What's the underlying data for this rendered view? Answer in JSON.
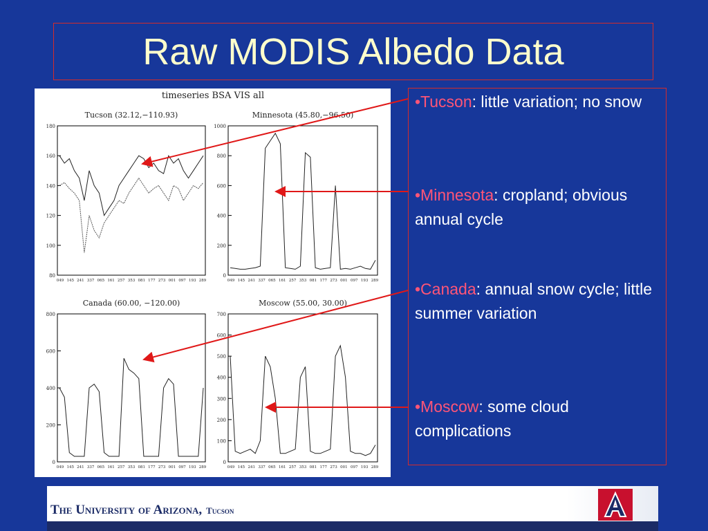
{
  "slide": {
    "title": "Raw MODIS Albedo Data"
  },
  "figure": {
    "title": "timeseries BSA VIS all",
    "xtick_labels": [
      "049",
      "145",
      "241",
      "337",
      "065",
      "161",
      "257",
      "353",
      "081",
      "177",
      "273",
      "001",
      "097",
      "193",
      "289"
    ],
    "panels": [
      {
        "title": "Tucson (32.12,−110.93)",
        "ylim": [
          80,
          180
        ],
        "yticks": [
          80,
          100,
          120,
          140,
          160,
          180
        ],
        "series": [
          {
            "values": [
              160,
              155,
              158,
              150,
              145,
              130,
              150,
              140,
              135,
              120,
              125,
              130,
              140,
              145,
              150,
              155,
              160,
              158,
              152,
              155,
              150,
              148,
              160,
              155,
              158,
              150,
              145,
              150,
              155,
              160
            ]
          },
          {
            "values": [
              140,
              142,
              138,
              135,
              130,
              95,
              120,
              110,
              105,
              115,
              120,
              125,
              130,
              128,
              135,
              140,
              145,
              140,
              135,
              138,
              140,
              135,
              130,
              140,
              138,
              130,
              135,
              140,
              138,
              142
            ]
          }
        ]
      },
      {
        "title": "Minnesota (45.80,−96.50)",
        "ylim": [
          0,
          1000
        ],
        "yticks": [
          0,
          200,
          400,
          600,
          800,
          1000
        ],
        "series": [
          {
            "values": [
              50,
              45,
              40,
              40,
              45,
              50,
              60,
              850,
              900,
              950,
              880,
              50,
              45,
              40,
              60,
              820,
              790,
              50,
              40,
              45,
              50,
              600,
              40,
              45,
              40,
              50,
              60,
              45,
              40,
              100
            ]
          }
        ]
      },
      {
        "title": "Canada (60.00, −120.00)",
        "ylim": [
          0,
          800
        ],
        "yticks": [
          0,
          200,
          400,
          600,
          800
        ],
        "series": [
          {
            "values": [
              400,
              350,
              50,
              30,
              30,
              30,
              400,
              420,
              380,
              50,
              30,
              30,
              30,
              560,
              500,
              480,
              450,
              30,
              30,
              30,
              30,
              400,
              450,
              420,
              30,
              30,
              30,
              30,
              30,
              400
            ]
          }
        ]
      },
      {
        "title": "Moscow (55.00, 30.00)",
        "ylim": [
          0,
          700
        ],
        "yticks": [
          0,
          100,
          200,
          300,
          400,
          500,
          600,
          700
        ],
        "series": [
          {
            "values": [
              500,
              50,
              40,
              50,
              60,
              40,
              100,
              500,
              450,
              300,
              40,
              40,
              50,
              60,
              400,
              450,
              50,
              40,
              40,
              50,
              60,
              500,
              550,
              400,
              50,
              40,
              40,
              30,
              40,
              80
            ]
          }
        ]
      }
    ]
  },
  "bullets": [
    {
      "label": "•Tucson",
      "text": ": little variation; no snow"
    },
    {
      "label": "•Minnesota",
      "text": ": cropland; obvious annual cycle"
    },
    {
      "label": "•Canada",
      "text": ": annual snow cycle; little summer variation"
    },
    {
      "label": "•Moscow",
      "text": ": some cloud complications"
    }
  ],
  "footer": {
    "university": "The University of Arizona,",
    "campus": "Tucson"
  }
}
